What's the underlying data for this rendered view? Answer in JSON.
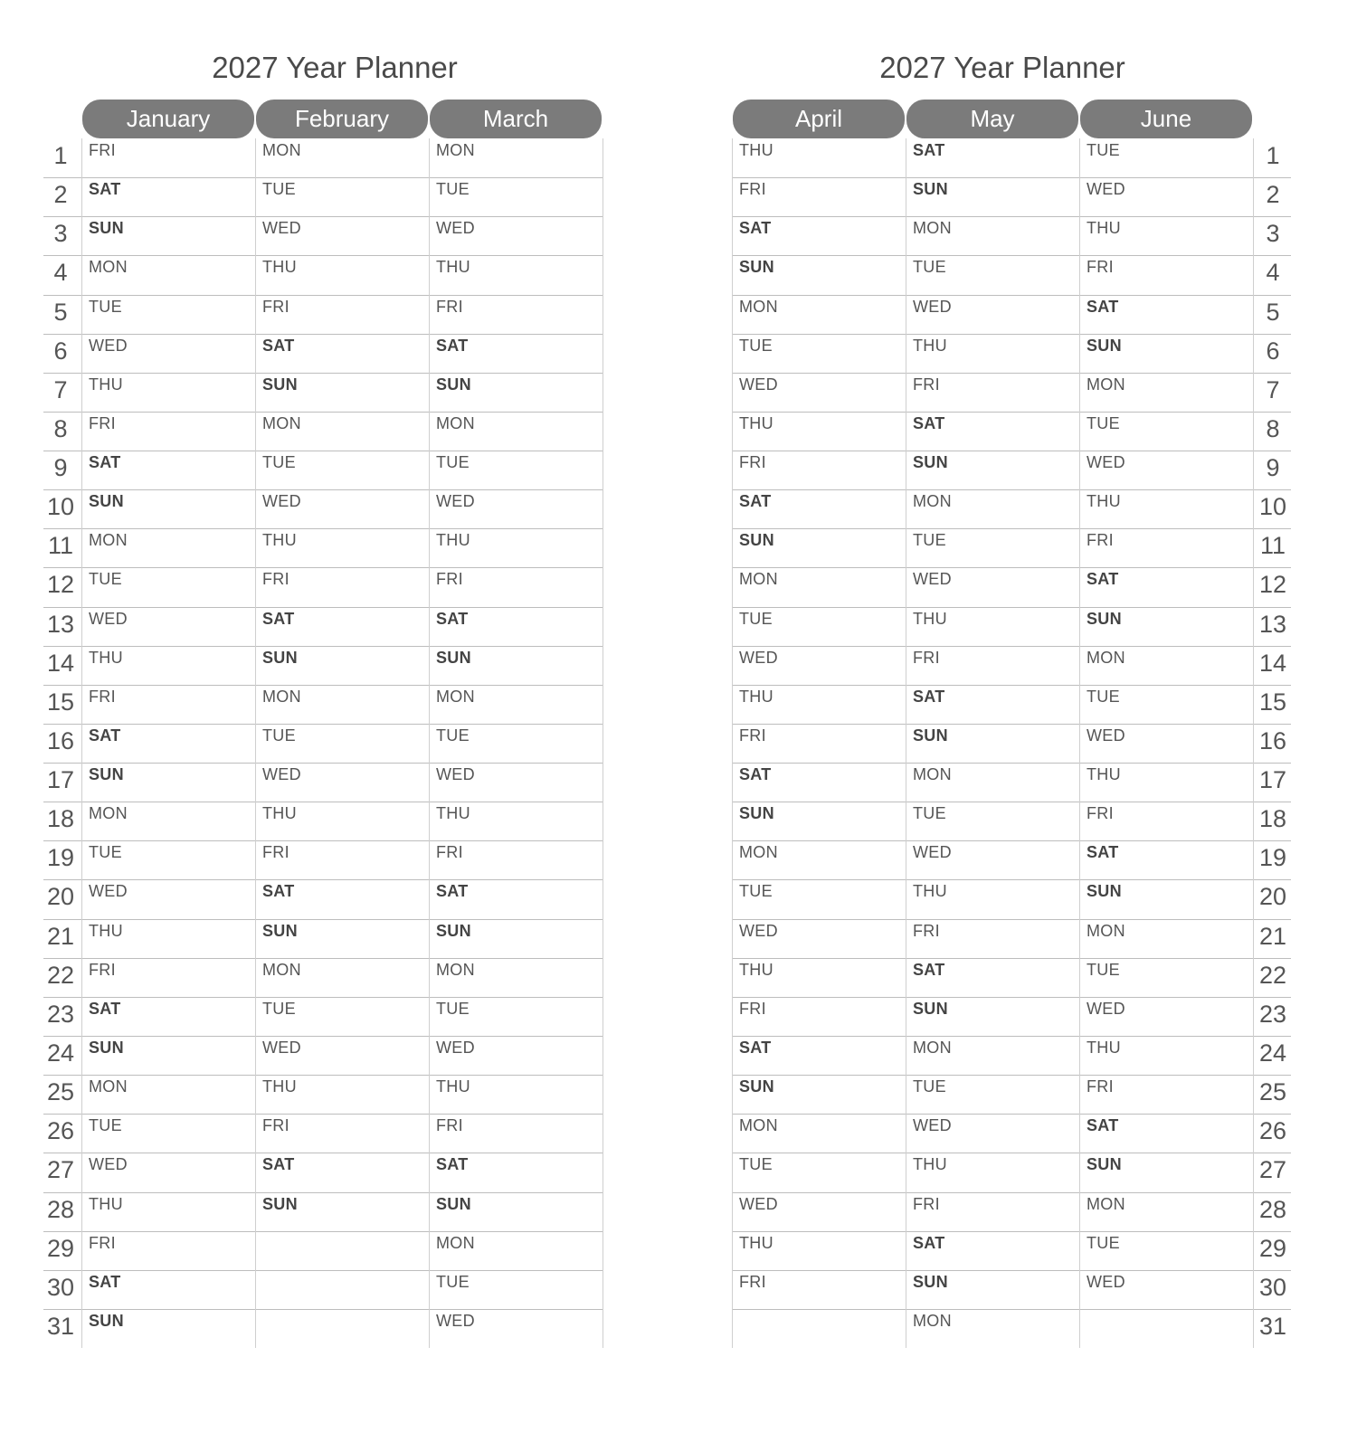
{
  "left_page": {
    "title": "2027 Year Planner",
    "months": [
      {
        "name": "January",
        "days": [
          "FRI",
          "SAT",
          "SUN",
          "MON",
          "TUE",
          "WED",
          "THU",
          "FRI",
          "SAT",
          "SUN",
          "MON",
          "TUE",
          "WED",
          "THU",
          "FRI",
          "SAT",
          "SUN",
          "MON",
          "TUE",
          "WED",
          "THU",
          "FRI",
          "SAT",
          "SUN",
          "MON",
          "TUE",
          "WED",
          "THU",
          "FRI",
          "SAT",
          "SUN"
        ]
      },
      {
        "name": "February",
        "days": [
          "MON",
          "TUE",
          "WED",
          "THU",
          "FRI",
          "SAT",
          "SUN",
          "MON",
          "TUE",
          "WED",
          "THU",
          "FRI",
          "SAT",
          "SUN",
          "MON",
          "TUE",
          "WED",
          "THU",
          "FRI",
          "SAT",
          "SUN",
          "MON",
          "TUE",
          "WED",
          "THU",
          "FRI",
          "SAT",
          "SUN",
          "",
          "",
          ""
        ]
      },
      {
        "name": "March",
        "days": [
          "MON",
          "TUE",
          "WED",
          "THU",
          "FRI",
          "SAT",
          "SUN",
          "MON",
          "TUE",
          "WED",
          "THU",
          "FRI",
          "SAT",
          "SUN",
          "MON",
          "TUE",
          "WED",
          "THU",
          "FRI",
          "SAT",
          "SUN",
          "MON",
          "TUE",
          "WED",
          "THU",
          "FRI",
          "SAT",
          "SUN",
          "MON",
          "TUE",
          "WED"
        ]
      }
    ]
  },
  "right_page": {
    "title": "2027 Year Planner",
    "months": [
      {
        "name": "April",
        "days": [
          "THU",
          "FRI",
          "SAT",
          "SUN",
          "MON",
          "TUE",
          "WED",
          "THU",
          "FRI",
          "SAT",
          "SUN",
          "MON",
          "TUE",
          "WED",
          "THU",
          "FRI",
          "SAT",
          "SUN",
          "MON",
          "TUE",
          "WED",
          "THU",
          "FRI",
          "SAT",
          "SUN",
          "MON",
          "TUE",
          "WED",
          "THU",
          "FRI",
          ""
        ]
      },
      {
        "name": "May",
        "days": [
          "SAT",
          "SUN",
          "MON",
          "TUE",
          "WED",
          "THU",
          "FRI",
          "SAT",
          "SUN",
          "MON",
          "TUE",
          "WED",
          "THU",
          "FRI",
          "SAT",
          "SUN",
          "MON",
          "TUE",
          "WED",
          "THU",
          "FRI",
          "SAT",
          "SUN",
          "MON",
          "TUE",
          "WED",
          "THU",
          "FRI",
          "SAT",
          "SUN",
          "MON"
        ]
      },
      {
        "name": "June",
        "days": [
          "TUE",
          "WED",
          "THU",
          "FRI",
          "SAT",
          "SUN",
          "MON",
          "TUE",
          "WED",
          "THU",
          "FRI",
          "SAT",
          "SUN",
          "MON",
          "TUE",
          "WED",
          "THU",
          "FRI",
          "SAT",
          "SUN",
          "MON",
          "TUE",
          "WED",
          "THU",
          "FRI",
          "SAT",
          "SUN",
          "MON",
          "TUE",
          "WED",
          ""
        ]
      }
    ]
  },
  "day_numbers": [
    "1",
    "2",
    "3",
    "4",
    "5",
    "6",
    "7",
    "8",
    "9",
    "10",
    "11",
    "12",
    "13",
    "14",
    "15",
    "16",
    "17",
    "18",
    "19",
    "20",
    "21",
    "22",
    "23",
    "24",
    "25",
    "26",
    "27",
    "28",
    "29",
    "30",
    "31"
  ],
  "weekend_days": [
    "SAT",
    "SUN"
  ],
  "colors": {
    "header_pill": "#7b7b7b",
    "header_text": "#ffffff",
    "grid": "#bdbdbd",
    "text": "#555555"
  }
}
